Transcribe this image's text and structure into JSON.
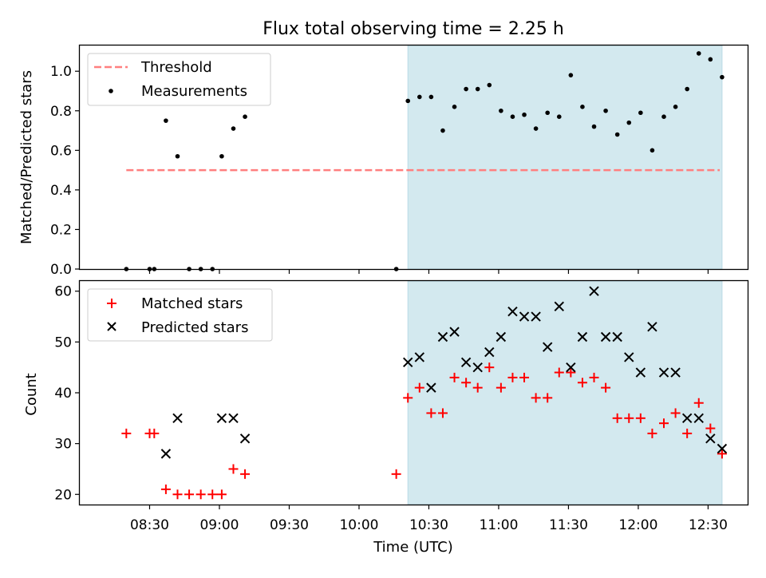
{
  "chart_data": [
    {
      "type": "scatter",
      "title": "Flux total observing time = 2.25 h",
      "xlabel": "",
      "ylabel": "Matched/Predicted stars",
      "ylim": [
        0,
        1.13
      ],
      "yticks": [
        0.0,
        0.2,
        0.4,
        0.6,
        0.8,
        1.0
      ],
      "xlim": [
        "08:00",
        "12:47"
      ],
      "shaded_region": [
        "10:21",
        "12:36"
      ],
      "shaded_color": "#d3e9ef",
      "threshold": {
        "name": "Threshold",
        "value": 0.5,
        "x_from": "08:20",
        "x_to": "12:35",
        "color": "#ff7f7f"
      },
      "legend": "top-left",
      "series": [
        {
          "name": "Measurements",
          "marker": "dot",
          "color": "#000000",
          "points": [
            [
              "08:20",
              0.0
            ],
            [
              "08:30",
              0.0
            ],
            [
              "08:32",
              0.0
            ],
            [
              "08:37",
              0.75
            ],
            [
              "08:42",
              0.57
            ],
            [
              "08:47",
              0.0
            ],
            [
              "08:52",
              0.0
            ],
            [
              "08:57",
              0.0
            ],
            [
              "09:01",
              0.57
            ],
            [
              "09:06",
              0.71
            ],
            [
              "09:11",
              0.77
            ],
            [
              "10:16",
              0.0
            ],
            [
              "10:21",
              0.85
            ],
            [
              "10:26",
              0.87
            ],
            [
              "10:31",
              0.87
            ],
            [
              "10:36",
              0.7
            ],
            [
              "10:41",
              0.82
            ],
            [
              "10:46",
              0.91
            ],
            [
              "10:51",
              0.91
            ],
            [
              "10:56",
              0.93
            ],
            [
              "11:01",
              0.8
            ],
            [
              "11:06",
              0.77
            ],
            [
              "11:11",
              0.78
            ],
            [
              "11:16",
              0.71
            ],
            [
              "11:21",
              0.79
            ],
            [
              "11:26",
              0.77
            ],
            [
              "11:31",
              0.98
            ],
            [
              "11:36",
              0.82
            ],
            [
              "11:41",
              0.72
            ],
            [
              "11:46",
              0.8
            ],
            [
              "11:51",
              0.68
            ],
            [
              "11:56",
              0.74
            ],
            [
              "12:01",
              0.79
            ],
            [
              "12:06",
              0.6
            ],
            [
              "12:11",
              0.77
            ],
            [
              "12:16",
              0.82
            ],
            [
              "12:21",
              0.91
            ],
            [
              "12:26",
              1.09
            ],
            [
              "12:31",
              1.06
            ],
            [
              "12:36",
              0.97
            ]
          ]
        }
      ]
    },
    {
      "type": "scatter",
      "title": "",
      "xlabel": "Time (UTC)",
      "ylabel": "Count",
      "ylim": [
        18,
        62
      ],
      "yticks": [
        20,
        30,
        40,
        50,
        60
      ],
      "xlim": [
        "08:00",
        "12:47"
      ],
      "xticks": [
        "08:30",
        "09:00",
        "09:30",
        "10:00",
        "10:30",
        "11:00",
        "11:30",
        "12:00",
        "12:30"
      ],
      "shaded_region": [
        "10:21",
        "12:36"
      ],
      "shaded_color": "#d3e9ef",
      "legend": "top-left",
      "series": [
        {
          "name": "Matched stars",
          "marker": "plus",
          "color": "#ff0000",
          "points": [
            [
              "08:20",
              32
            ],
            [
              "08:30",
              32
            ],
            [
              "08:32",
              32
            ],
            [
              "08:37",
              21
            ],
            [
              "08:42",
              20
            ],
            [
              "08:47",
              20
            ],
            [
              "08:52",
              20
            ],
            [
              "08:57",
              20
            ],
            [
              "09:01",
              20
            ],
            [
              "09:06",
              25
            ],
            [
              "09:11",
              24
            ],
            [
              "10:16",
              24
            ],
            [
              "10:21",
              39
            ],
            [
              "10:26",
              41
            ],
            [
              "10:31",
              36
            ],
            [
              "10:36",
              36
            ],
            [
              "10:41",
              43
            ],
            [
              "10:46",
              42
            ],
            [
              "10:51",
              41
            ],
            [
              "10:56",
              45
            ],
            [
              "11:01",
              41
            ],
            [
              "11:06",
              43
            ],
            [
              "11:11",
              43
            ],
            [
              "11:16",
              39
            ],
            [
              "11:21",
              39
            ],
            [
              "11:26",
              44
            ],
            [
              "11:31",
              44
            ],
            [
              "11:36",
              42
            ],
            [
              "11:41",
              43
            ],
            [
              "11:46",
              41
            ],
            [
              "11:51",
              35
            ],
            [
              "11:56",
              35
            ],
            [
              "12:01",
              35
            ],
            [
              "12:06",
              32
            ],
            [
              "12:11",
              34
            ],
            [
              "12:16",
              36
            ],
            [
              "12:21",
              32
            ],
            [
              "12:26",
              38
            ],
            [
              "12:31",
              33
            ],
            [
              "12:36",
              28
            ]
          ]
        },
        {
          "name": "Predicted stars",
          "marker": "x",
          "color": "#000000",
          "points": [
            [
              "08:37",
              28
            ],
            [
              "08:42",
              35
            ],
            [
              "09:01",
              35
            ],
            [
              "09:06",
              35
            ],
            [
              "09:11",
              31
            ],
            [
              "10:21",
              46
            ],
            [
              "10:26",
              47
            ],
            [
              "10:31",
              41
            ],
            [
              "10:36",
              51
            ],
            [
              "10:41",
              52
            ],
            [
              "10:46",
              46
            ],
            [
              "10:51",
              45
            ],
            [
              "10:56",
              48
            ],
            [
              "11:01",
              51
            ],
            [
              "11:06",
              56
            ],
            [
              "11:11",
              55
            ],
            [
              "11:16",
              55
            ],
            [
              "11:21",
              49
            ],
            [
              "11:26",
              57
            ],
            [
              "11:31",
              45
            ],
            [
              "11:36",
              51
            ],
            [
              "11:41",
              60
            ],
            [
              "11:46",
              51
            ],
            [
              "11:51",
              51
            ],
            [
              "11:56",
              47
            ],
            [
              "12:01",
              44
            ],
            [
              "12:06",
              53
            ],
            [
              "12:11",
              44
            ],
            [
              "12:16",
              44
            ],
            [
              "12:21",
              35
            ],
            [
              "12:26",
              35
            ],
            [
              "12:31",
              31
            ],
            [
              "12:36",
              29
            ]
          ]
        }
      ]
    }
  ]
}
